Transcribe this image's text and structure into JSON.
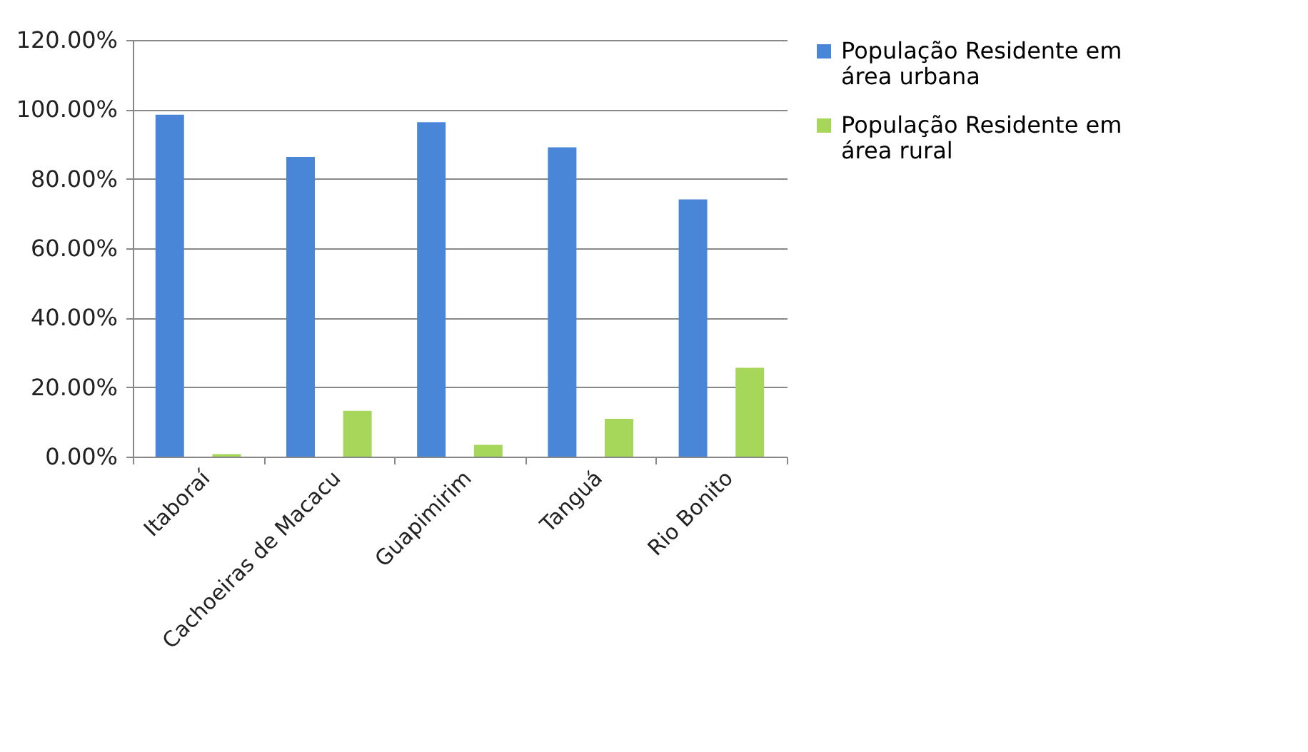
{
  "chart_data": {
    "type": "bar",
    "categories": [
      "Itaboraí",
      "Cachoeiras de Macacu",
      "Guapimirim",
      "Tanguá",
      "Rio Bonito"
    ],
    "series": [
      {
        "name": "População Residente  em área urbana",
        "color": "#4a86d8",
        "values": [
          98.5,
          86.3,
          96.3,
          89.1,
          74.1
        ]
      },
      {
        "name": "População Residente em área rural",
        "color": "#a6d65a",
        "values": [
          0.7,
          13.2,
          3.4,
          10.9,
          25.6
        ]
      }
    ],
    "ylim": [
      0,
      120
    ],
    "yticks": [
      {
        "value": 0,
        "label": "0.00%"
      },
      {
        "value": 20,
        "label": "20.00%"
      },
      {
        "value": 40,
        "label": "40.00%"
      },
      {
        "value": 60,
        "label": "60.00%"
      },
      {
        "value": 80,
        "label": "80.00%"
      },
      {
        "value": 100,
        "label": "100.00%"
      },
      {
        "value": 120,
        "label": "120.00%"
      }
    ],
    "grid": "y",
    "legend": "right"
  }
}
